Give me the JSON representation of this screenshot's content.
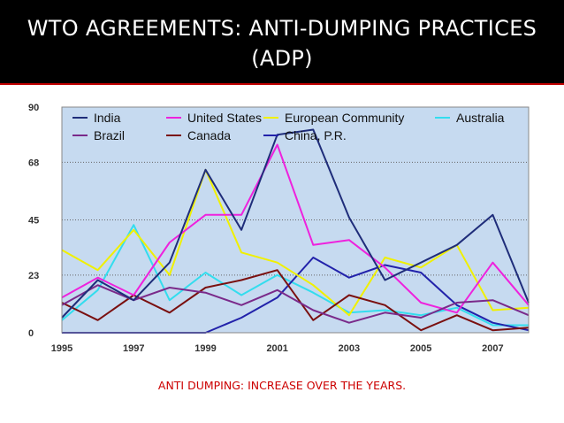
{
  "slide": {
    "title_line1": "WTO AGREEMENTS: ANTI-DUMPING PRACTICES",
    "title_line2": "(ADP)",
    "caption": "ANTI DUMPING: INCREASE OVER THE YEARS."
  },
  "colors": {
    "title_bar": "#000000",
    "title_text": "#ffffff",
    "caption_text": "#cc0000",
    "plot_background": "#c6daf0"
  },
  "chart_data": {
    "type": "line",
    "title": "",
    "xlabel": "",
    "ylabel": "",
    "x": [
      1995,
      1996,
      1997,
      1998,
      1999,
      2000,
      2001,
      2002,
      2003,
      2004,
      2005,
      2006,
      2007,
      2008
    ],
    "xlim": [
      1995,
      2008
    ],
    "ylim": [
      0,
      90
    ],
    "x_ticks": [
      "1995",
      "1997",
      "1999",
      "2001",
      "2003",
      "2005",
      "2007"
    ],
    "y_ticks": [
      "0",
      "23",
      "45",
      "68",
      "90"
    ],
    "y_tick_values": [
      0,
      23,
      45,
      68,
      90
    ],
    "grid": "horizontal dotted",
    "legend_position": "top",
    "series": [
      {
        "name": "India",
        "color": "#1f2d7a",
        "values": [
          6,
          21,
          13,
          28,
          65,
          41,
          79,
          81,
          46,
          21,
          28,
          35,
          47,
          12
        ]
      },
      {
        "name": "Brazil",
        "color": "#7a2a8a",
        "values": [
          11,
          19,
          13,
          18,
          16,
          11,
          17,
          9,
          4,
          8,
          6,
          12,
          13,
          7
        ]
      },
      {
        "name": "United States",
        "color": "#ee22dd",
        "values": [
          14,
          22,
          15,
          36,
          47,
          47,
          75,
          35,
          37,
          26,
          12,
          8,
          28,
          11
        ]
      },
      {
        "name": "Canada",
        "color": "#7a1010",
        "values": [
          12,
          5,
          15,
          8,
          18,
          21,
          25,
          5,
          15,
          11,
          1,
          7,
          1,
          2
        ]
      },
      {
        "name": "European Community",
        "color": "#f0f000",
        "values": [
          33,
          25,
          41,
          23,
          65,
          32,
          28,
          19,
          7,
          30,
          26,
          35,
          9,
          10
        ]
      },
      {
        "name": "China, P.R.",
        "color": "#2222aa",
        "values": [
          0,
          0,
          0,
          0,
          0,
          6,
          14,
          30,
          22,
          27,
          24,
          11,
          4,
          1
        ]
      },
      {
        "name": "Australia",
        "color": "#33ddee",
        "values": [
          5,
          17,
          43,
          13,
          24,
          15,
          23,
          16,
          8,
          9,
          7,
          10,
          3,
          3
        ]
      }
    ]
  }
}
